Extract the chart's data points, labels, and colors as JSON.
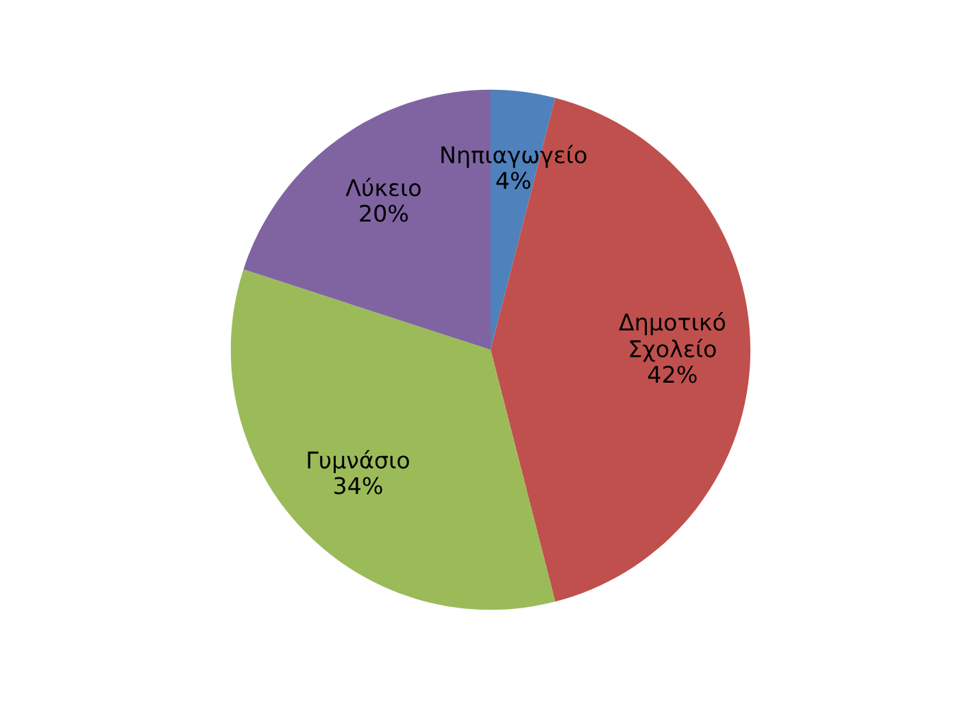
{
  "chart_data": {
    "type": "pie",
    "categories": [
      "Νηπιαγωγείο",
      "Δημοτικό\nΣχολείο",
      "Γυμνάσιο",
      "Λύκειο"
    ],
    "values": [
      4,
      42,
      34,
      20
    ],
    "colors": [
      "#4f81bd",
      "#c0504d",
      "#9bbb59",
      "#8064a2"
    ],
    "value_labels": [
      "4%",
      "42%",
      "34%",
      "20%"
    ],
    "legend": false
  }
}
